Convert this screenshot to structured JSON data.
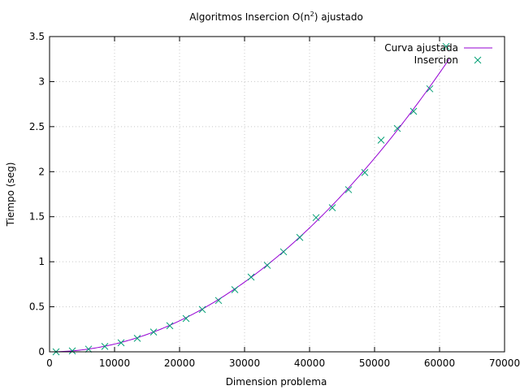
{
  "chart_data": {
    "type": "scatter",
    "title_main": "Algoritmos Insercion O(n",
    "title_sup": "2",
    "title_tail": ") ajustado",
    "xlabel": "Dimension problema",
    "ylabel": "Tiempo (seg)",
    "xlim": [
      0,
      70000
    ],
    "ylim": [
      0,
      3.5
    ],
    "xticks": [
      0,
      10000,
      20000,
      30000,
      40000,
      50000,
      60000,
      70000
    ],
    "yticks": [
      0,
      0.5,
      1,
      1.5,
      2,
      2.5,
      3,
      3.5
    ],
    "grid": true,
    "legend_position": "top-right",
    "series": [
      {
        "name": "Curva ajustada",
        "kind": "line",
        "color": "#9400d3",
        "model": "quadratic",
        "coefficients": {
          "a2": 8.6e-10,
          "a1": 0.0,
          "a0": 0.0
        },
        "x_range": [
          0,
          61500
        ]
      },
      {
        "name": "Insercion",
        "kind": "points",
        "marker": "x",
        "color": "#009e73",
        "x": [
          1000,
          3500,
          6000,
          8500,
          11000,
          13500,
          16000,
          18500,
          21000,
          23500,
          26000,
          28500,
          31000,
          33500,
          36000,
          38500,
          41000,
          43500,
          46000,
          48500,
          51000,
          53500,
          56000,
          58500,
          61000
        ],
        "y": [
          0.0,
          0.01,
          0.03,
          0.06,
          0.1,
          0.15,
          0.22,
          0.29,
          0.37,
          0.47,
          0.57,
          0.69,
          0.83,
          0.96,
          1.11,
          1.27,
          1.49,
          1.6,
          1.8,
          1.99,
          2.35,
          2.48,
          2.67,
          2.92,
          3.39
        ]
      }
    ]
  }
}
